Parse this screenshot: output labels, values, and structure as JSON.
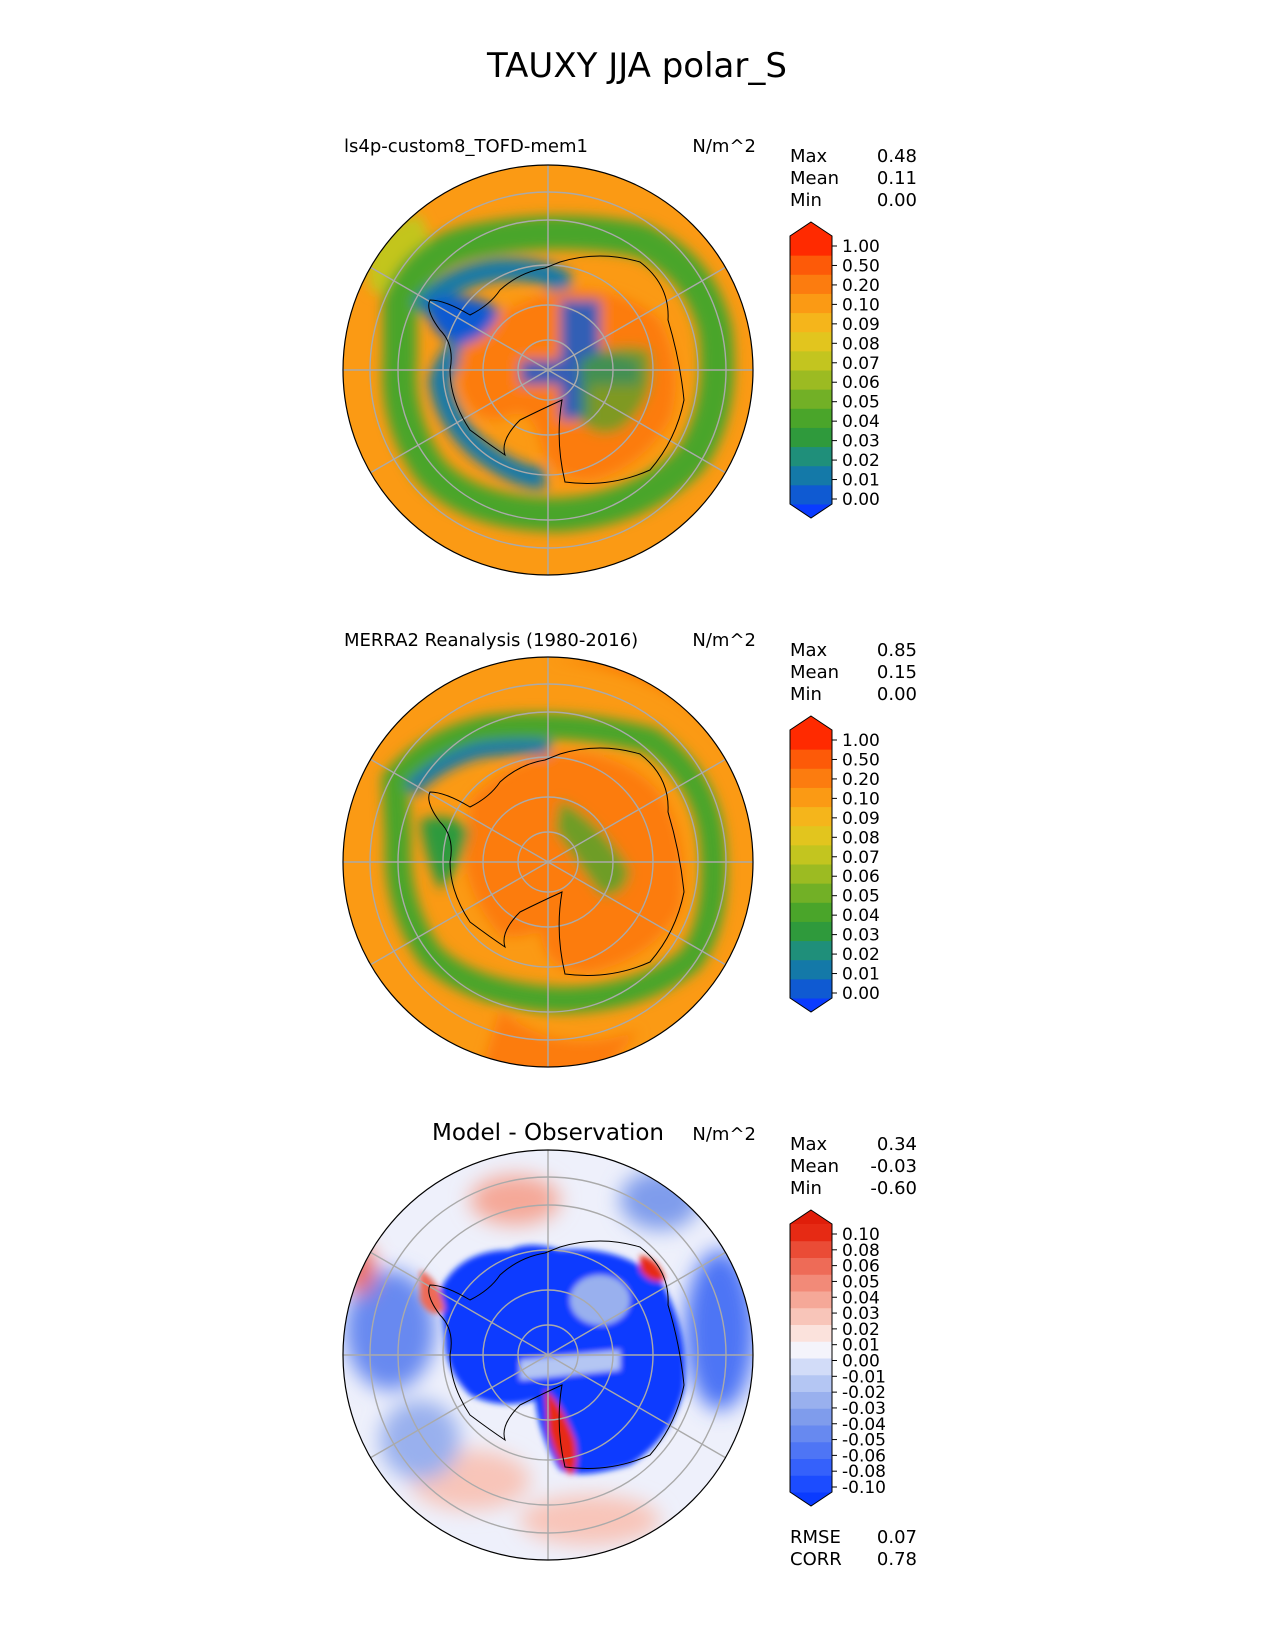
{
  "figure_title": "TAUXY JJA polar_S",
  "chart_data": [
    {
      "type": "heatmap",
      "projection": "south polar stereographic",
      "title": "ls4p-custom8_TOFD-mem1",
      "units": "N/m^2",
      "stats": [
        {
          "label": "Max",
          "value": "0.48"
        },
        {
          "label": "Mean",
          "value": "0.11"
        },
        {
          "label": "Min",
          "value": "0.00"
        }
      ],
      "colorbar": {
        "ticks": [
          "0.00",
          "0.01",
          "0.02",
          "0.03",
          "0.04",
          "0.05",
          "0.06",
          "0.07",
          "0.08",
          "0.09",
          "0.10",
          "0.20",
          "0.50",
          "1.00"
        ],
        "colors": [
          "#0a3bff",
          "#0f5ad2",
          "#1479a8",
          "#1f8f7a",
          "#2f9a3c",
          "#4aa52a",
          "#72b026",
          "#9cbb22",
          "#c3c51f",
          "#e2c51e",
          "#f5b51b",
          "#fb9a14",
          "#fc7c0f",
          "#fd5a08",
          "#ff2a00",
          "#ff2a00"
        ]
      },
      "field_description": "Orange background over Southern Ocean, green/blue ring around Antarctic coastline, orange interior"
    },
    {
      "type": "heatmap",
      "projection": "south polar stereographic",
      "title": "MERRA2 Reanalysis (1980-2016)",
      "units": "N/m^2",
      "stats": [
        {
          "label": "Max",
          "value": "0.85"
        },
        {
          "label": "Mean",
          "value": "0.15"
        },
        {
          "label": "Min",
          "value": "0.00"
        }
      ],
      "colorbar": {
        "ticks": [
          "0.00",
          "0.01",
          "0.02",
          "0.03",
          "0.04",
          "0.05",
          "0.06",
          "0.07",
          "0.08",
          "0.09",
          "0.10",
          "0.20",
          "0.50",
          "1.00"
        ],
        "colors": [
          "#0a3bff",
          "#0f5ad2",
          "#1479a8",
          "#1f8f7a",
          "#2f9a3c",
          "#4aa52a",
          "#72b026",
          "#9cbb22",
          "#c3c51f",
          "#e2c51e",
          "#f5b51b",
          "#fb9a14",
          "#fc7c0f",
          "#fd5a08",
          "#ff2a00",
          "#ff2a00"
        ]
      }
    },
    {
      "type": "heatmap",
      "projection": "south polar stereographic",
      "title": "Model - Observation",
      "units": "N/m^2",
      "stats": [
        {
          "label": "Max",
          "value": "0.34"
        },
        {
          "label": "Mean",
          "value": "-0.03"
        },
        {
          "label": "Min",
          "value": "-0.60"
        }
      ],
      "colorbar": {
        "ticks": [
          "-0.10",
          "-0.08",
          "-0.06",
          "-0.05",
          "-0.04",
          "-0.03",
          "-0.02",
          "-0.01",
          "0.00",
          "0.01",
          "0.02",
          "0.03",
          "0.04",
          "0.05",
          "0.06",
          "0.08",
          "0.10"
        ],
        "colors": [
          "#0a3bff",
          "#1c4cff",
          "#3561fb",
          "#4e75f5",
          "#6789f0",
          "#7f9cec",
          "#99b0ee",
          "#b4c6f3",
          "#d2dcf8",
          "#f4f4fb",
          "#fbe2dc",
          "#f8c5b9",
          "#f5a898",
          "#f28a78",
          "#ee6b57",
          "#ea4c36",
          "#e62a14",
          "#e01e0a"
        ]
      },
      "error_stats": [
        {
          "label": "RMSE",
          "value": "0.07"
        },
        {
          "label": "CORR",
          "value": "0.78"
        }
      ]
    }
  ]
}
